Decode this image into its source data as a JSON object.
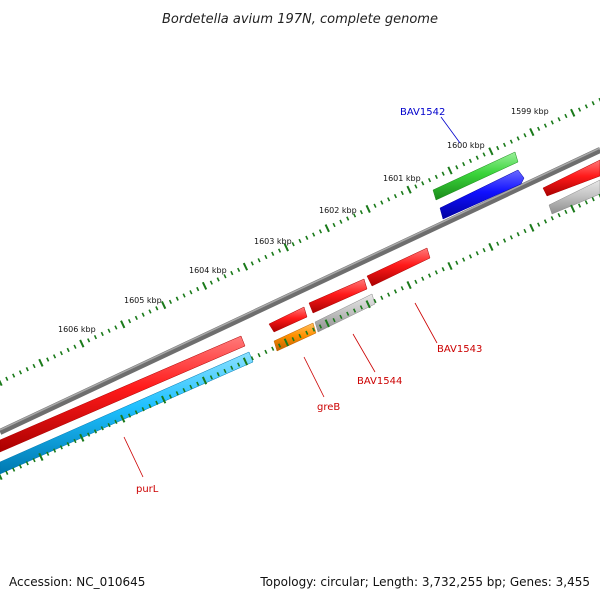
{
  "title": "Bordetella avium 197N, complete genome",
  "footer": {
    "accession": "Accession: NC_010645",
    "stats": "Topology: circular; Length: 3,732,255 bp; Genes: 3,455"
  },
  "colors": {
    "backbone": "#7a7a7a",
    "tick": "#1a7a1a",
    "label_red": "#cc0000",
    "label_blue": "#0000cc",
    "red": "#ee0000",
    "grey": "#b8b8b8",
    "orange": "#ff8c00",
    "cyan": "#00b4ff",
    "green": "#33cc33",
    "blue": "#0000ee"
  },
  "scale": {
    "unit": "kbp",
    "labels": [
      "1599 kbp",
      "1600 kbp",
      "1601 kbp",
      "1602 kbp",
      "1603 kbp",
      "1604 kbp",
      "1605 kbp",
      "1606 kbp"
    ]
  },
  "genes": [
    {
      "label": "BAV1542",
      "color": "blue"
    },
    {
      "label": "BAV1543",
      "color": "red"
    },
    {
      "label": "BAV1544",
      "color": "red"
    },
    {
      "label": "greB",
      "color": "red"
    },
    {
      "label": "purL",
      "color": "red"
    }
  ]
}
